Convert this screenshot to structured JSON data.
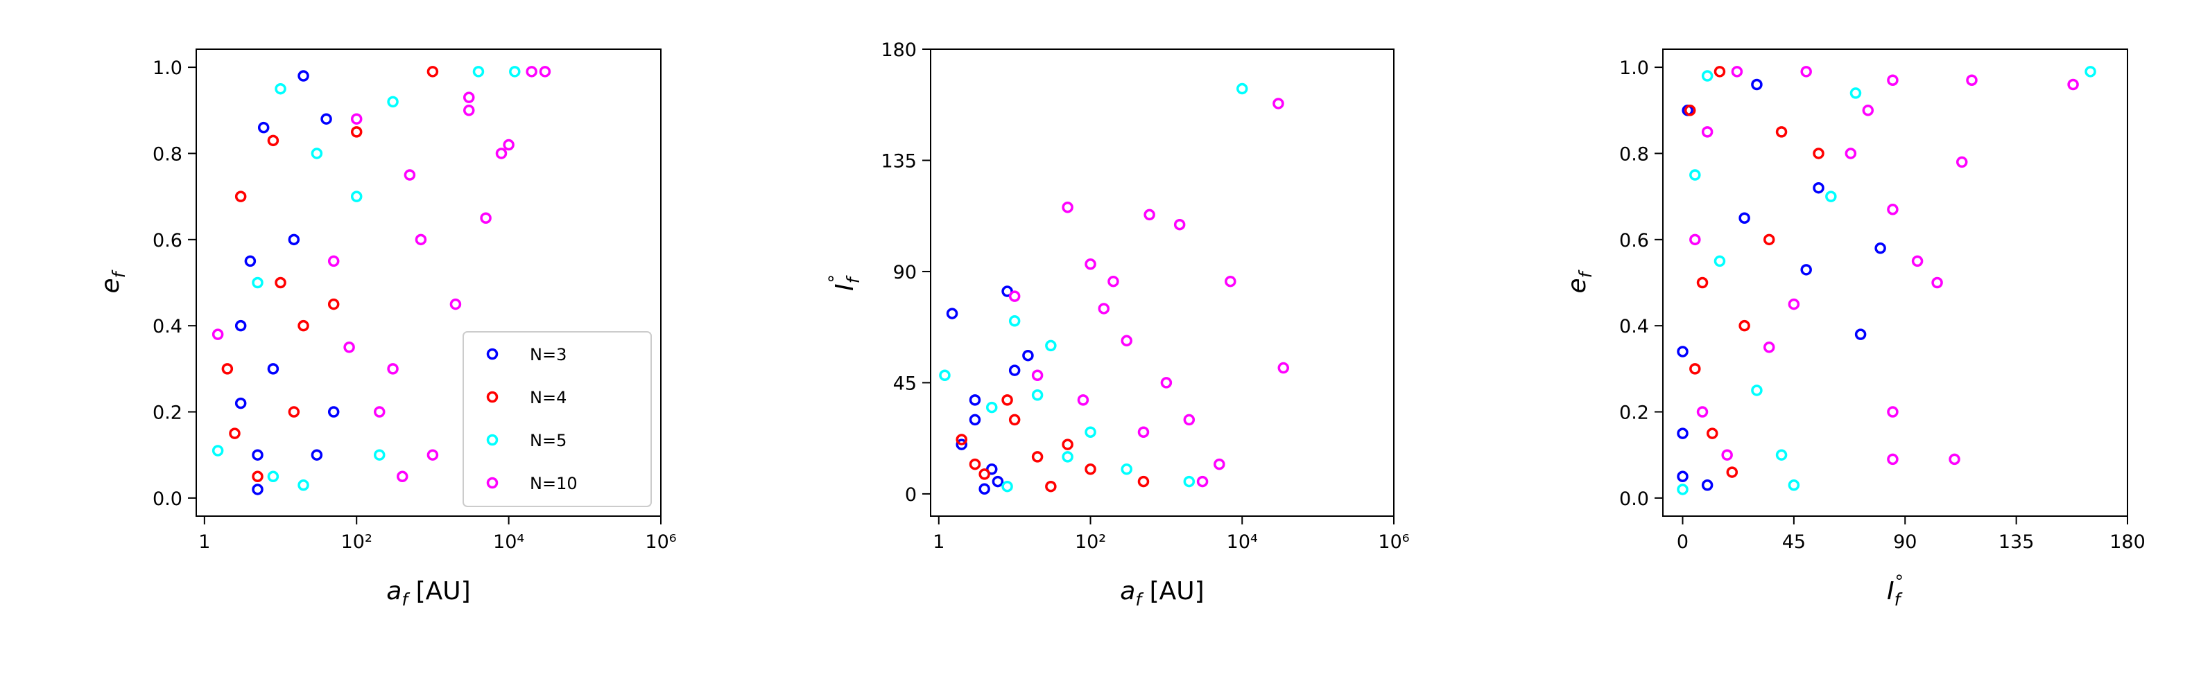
{
  "chart_data": [
    {
      "type": "scatter",
      "xlabel": {
        "main": "a",
        "sub": "f",
        "rest": " [AU]"
      },
      "ylabel": {
        "main": "e",
        "sub": "f"
      },
      "xscale": "log",
      "xlim": [
        0.78,
        1000000
      ],
      "ylim": [
        -0.042,
        1.042
      ],
      "xticks": [
        1,
        {
          "value": 100,
          "label": "10²"
        },
        {
          "value": 10000,
          "label": "10⁴"
        },
        {
          "value": 1000000,
          "label": "10⁶"
        }
      ],
      "yticks": [
        {
          "value": 0,
          "label": "0.0"
        },
        0.2,
        0.4,
        0.6,
        0.8,
        {
          "value": 1,
          "label": "1.0"
        }
      ],
      "legend": "lower right",
      "series": [
        {
          "name": "N=3",
          "color": "#0000ff",
          "x": [
            3,
            5,
            4,
            6,
            20,
            40,
            8,
            30,
            5,
            15,
            50,
            3
          ],
          "values": [
            0.4,
            0.1,
            0.55,
            0.86,
            0.98,
            0.88,
            0.3,
            0.1,
            0.02,
            0.6,
            0.2,
            0.22
          ]
        },
        {
          "name": "N=4",
          "color": "#ff0000",
          "x": [
            2,
            3,
            8,
            10,
            1000,
            5,
            20,
            50,
            2.5,
            15,
            100
          ],
          "values": [
            0.3,
            0.7,
            0.83,
            0.5,
            0.99,
            0.05,
            0.4,
            0.45,
            0.15,
            0.2,
            0.85
          ]
        },
        {
          "name": "N=5",
          "color": "#00ffff",
          "x": [
            1.5,
            10,
            300,
            12000,
            4000,
            30,
            5,
            8,
            100,
            200,
            20
          ],
          "values": [
            0.11,
            0.95,
            0.92,
            0.99,
            0.99,
            0.8,
            0.5,
            0.05,
            0.7,
            0.1,
            0.03
          ]
        },
        {
          "name": "N=10",
          "color": "#ff00ff",
          "x": [
            1.5,
            30000,
            20000,
            8000,
            3000,
            500,
            100,
            200,
            1000,
            400,
            2000,
            5000,
            50,
            300,
            700,
            3000,
            10000,
            80
          ],
          "values": [
            0.38,
            0.99,
            0.99,
            0.8,
            0.93,
            0.75,
            0.88,
            0.2,
            0.1,
            0.05,
            0.45,
            0.65,
            0.55,
            0.3,
            0.6,
            0.9,
            0.82,
            0.35
          ]
        }
      ]
    },
    {
      "type": "scatter",
      "xlabel": {
        "main": "a",
        "sub": "f",
        "rest": " [AU]"
      },
      "ylabel": {
        "main": "I",
        "sub": "f",
        "sup": "°"
      },
      "xscale": "log",
      "xlim": [
        0.78,
        1000000
      ],
      "ylim": [
        -9,
        180
      ],
      "xticks": [
        1,
        {
          "value": 100,
          "label": "10²"
        },
        {
          "value": 10000,
          "label": "10⁴"
        },
        {
          "value": 1000000,
          "label": "10⁶"
        }
      ],
      "yticks": [
        0,
        45,
        90,
        135,
        180
      ],
      "series": [
        {
          "color": "#0000ff",
          "x": [
            1.5,
            8,
            3,
            5,
            4,
            10,
            2,
            6,
            15,
            3
          ],
          "values": [
            73,
            82,
            30,
            10,
            2,
            50,
            20,
            5,
            56,
            38
          ]
        },
        {
          "color": "#ff0000",
          "x": [
            2,
            4,
            10,
            30,
            500,
            8,
            20,
            100,
            3,
            50
          ],
          "values": [
            22,
            8,
            30,
            3,
            5,
            38,
            15,
            10,
            12,
            20
          ]
        },
        {
          "color": "#00ffff",
          "x": [
            1.2,
            10000,
            10,
            5,
            30,
            20,
            100,
            300,
            2000,
            50,
            8
          ],
          "values": [
            48,
            164,
            70,
            35,
            60,
            40,
            25,
            10,
            5,
            15,
            3
          ]
        },
        {
          "color": "#ff00ff",
          "x": [
            30000,
            50,
            600,
            1500,
            100,
            200,
            7000,
            35000,
            150,
            300,
            1000,
            3000,
            500,
            5000,
            2000,
            80,
            20,
            10
          ],
          "values": [
            158,
            116,
            113,
            109,
            93,
            86,
            86,
            51,
            75,
            62,
            45,
            5,
            25,
            12,
            30,
            38,
            48,
            80
          ]
        }
      ]
    },
    {
      "type": "scatter",
      "xlabel": {
        "main": "I",
        "sub": "f",
        "sup": "°"
      },
      "ylabel": {
        "main": "e",
        "sub": "f"
      },
      "xlim": [
        -8,
        180
      ],
      "ylim": [
        -0.042,
        1.042
      ],
      "xticks": [
        0,
        45,
        90,
        135,
        180
      ],
      "yticks": [
        {
          "value": 0,
          "label": "0.0"
        },
        0.2,
        0.4,
        0.6,
        0.8,
        {
          "value": 1,
          "label": "1.0"
        }
      ],
      "series": [
        {
          "color": "#0000ff",
          "x": [
            0,
            0,
            0,
            2,
            30,
            55,
            80,
            72,
            50,
            10,
            25
          ],
          "values": [
            0.05,
            0.15,
            0.34,
            0.9,
            0.96,
            0.72,
            0.58,
            0.38,
            0.53,
            0.03,
            0.65
          ]
        },
        {
          "color": "#ff0000",
          "x": [
            3,
            5,
            8,
            15,
            20,
            40,
            55,
            25,
            12,
            35
          ],
          "values": [
            0.9,
            0.3,
            0.5,
            0.99,
            0.06,
            0.85,
            0.8,
            0.4,
            0.15,
            0.6
          ]
        },
        {
          "color": "#00ffff",
          "x": [
            0,
            5,
            10,
            45,
            60,
            70,
            165,
            30,
            15,
            40
          ],
          "values": [
            0.02,
            0.75,
            0.98,
            0.03,
            0.7,
            0.94,
            0.99,
            0.25,
            0.55,
            0.1
          ]
        },
        {
          "color": "#ff00ff",
          "x": [
            5,
            10,
            22,
            35,
            50,
            75,
            85,
            85,
            85,
            85,
            95,
            110,
            113,
            117,
            158,
            103,
            68,
            45,
            8,
            18
          ],
          "values": [
            0.6,
            0.85,
            0.99,
            0.35,
            0.99,
            0.9,
            0.97,
            0.67,
            0.2,
            0.09,
            0.55,
            0.09,
            0.78,
            0.97,
            0.96,
            0.5,
            0.8,
            0.45,
            0.2,
            0.1
          ]
        }
      ]
    }
  ]
}
